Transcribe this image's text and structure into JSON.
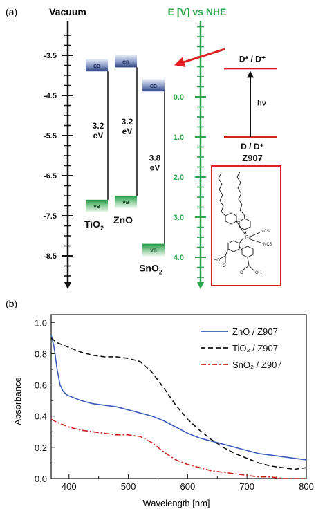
{
  "panel_a": {
    "label": "(a)",
    "vacuum_title": "Vacuum",
    "nhe_title": "E [V] vs NHE",
    "vacuum_ticks": [
      "-3.5",
      "-4.5",
      "-5.5",
      "-6.5",
      "-7.5",
      "-8.5"
    ],
    "nhe_ticks": [
      "0.0",
      "1.0",
      "2.0",
      "3.0",
      "4.0"
    ],
    "semiconductors": [
      {
        "name": "TiO",
        "sub": "2",
        "cb_label": "CB",
        "vb_label": "VB",
        "gap": "3.2",
        "gap_unit": "eV",
        "cb_ev": -3.9,
        "vb_ev": -7.1
      },
      {
        "name": "ZnO",
        "sub": "",
        "cb_label": "CB",
        "vb_label": "VB",
        "gap": "3.2",
        "gap_unit": "eV",
        "cb_ev": -3.8,
        "vb_ev": -7.0
      },
      {
        "name": "SnO",
        "sub": "2",
        "cb_label": "CB",
        "vb_label": "VB",
        "gap": "3.8",
        "gap_unit": "eV",
        "cb_ev": -4.4,
        "vb_ev": -8.2
      }
    ],
    "dye": {
      "excited": "D* / D⁺",
      "ground": "D / D⁺",
      "name": "Z907",
      "hv": "hν",
      "excited_nhe": -0.7,
      "ground_nhe": 1.0
    },
    "structure_labels": {
      "ru": "Ru",
      "ncs1": "NCS",
      "ncs2": "NCS",
      "cooh1": "HO",
      "cooh2": "OH",
      "o1": "O",
      "o2": "O"
    },
    "colors": {
      "green": "#2aa64b",
      "red": "#e02020",
      "dark": "#111111"
    }
  },
  "panel_b": {
    "label": "(b)",
    "chart_data": {
      "type": "line",
      "xlabel": "Wavelength [nm]",
      "ylabel": "Absorbance",
      "xlim": [
        370,
        800
      ],
      "ylim": [
        0.0,
        1.05
      ],
      "xticks": [
        400,
        500,
        600,
        700,
        800
      ],
      "yticks": [
        0.0,
        0.2,
        0.4,
        0.6,
        0.8,
        1.0
      ],
      "legend_position": "top-right",
      "series": [
        {
          "name": "ZnO  / Z907",
          "color": "#3a5bbd",
          "dash": "solid",
          "x": [
            370,
            375,
            380,
            385,
            390,
            395,
            400,
            420,
            440,
            460,
            480,
            500,
            520,
            540,
            560,
            580,
            600,
            620,
            640,
            660,
            680,
            700,
            720,
            740,
            760,
            780,
            800
          ],
          "y": [
            0.92,
            0.84,
            0.7,
            0.6,
            0.56,
            0.54,
            0.53,
            0.5,
            0.48,
            0.47,
            0.46,
            0.44,
            0.42,
            0.4,
            0.37,
            0.33,
            0.29,
            0.26,
            0.24,
            0.22,
            0.2,
            0.18,
            0.16,
            0.15,
            0.14,
            0.13,
            0.12
          ]
        },
        {
          "name": "TiO₂ / Z907",
          "color": "#111111",
          "dash": "dashed",
          "x": [
            370,
            380,
            400,
            420,
            440,
            460,
            480,
            500,
            520,
            540,
            560,
            580,
            600,
            620,
            640,
            660,
            680,
            700,
            720,
            740,
            760,
            780,
            800
          ],
          "y": [
            0.9,
            0.87,
            0.84,
            0.81,
            0.79,
            0.78,
            0.78,
            0.77,
            0.75,
            0.68,
            0.58,
            0.47,
            0.38,
            0.31,
            0.25,
            0.2,
            0.16,
            0.13,
            0.1,
            0.08,
            0.07,
            0.06,
            0.07
          ]
        },
        {
          "name": "SnO₂ / Z907",
          "color": "#d22020",
          "dash": "dashdot",
          "x": [
            370,
            380,
            400,
            420,
            440,
            460,
            480,
            500,
            520,
            540,
            560,
            580,
            600,
            620,
            640,
            660,
            680,
            700,
            720,
            740,
            760,
            780,
            800
          ],
          "y": [
            0.38,
            0.36,
            0.33,
            0.31,
            0.3,
            0.29,
            0.28,
            0.28,
            0.27,
            0.23,
            0.17,
            0.12,
            0.09,
            0.07,
            0.05,
            0.04,
            0.03,
            0.02,
            0.01,
            0.01,
            0.0,
            0.0,
            0.0
          ]
        }
      ]
    }
  }
}
